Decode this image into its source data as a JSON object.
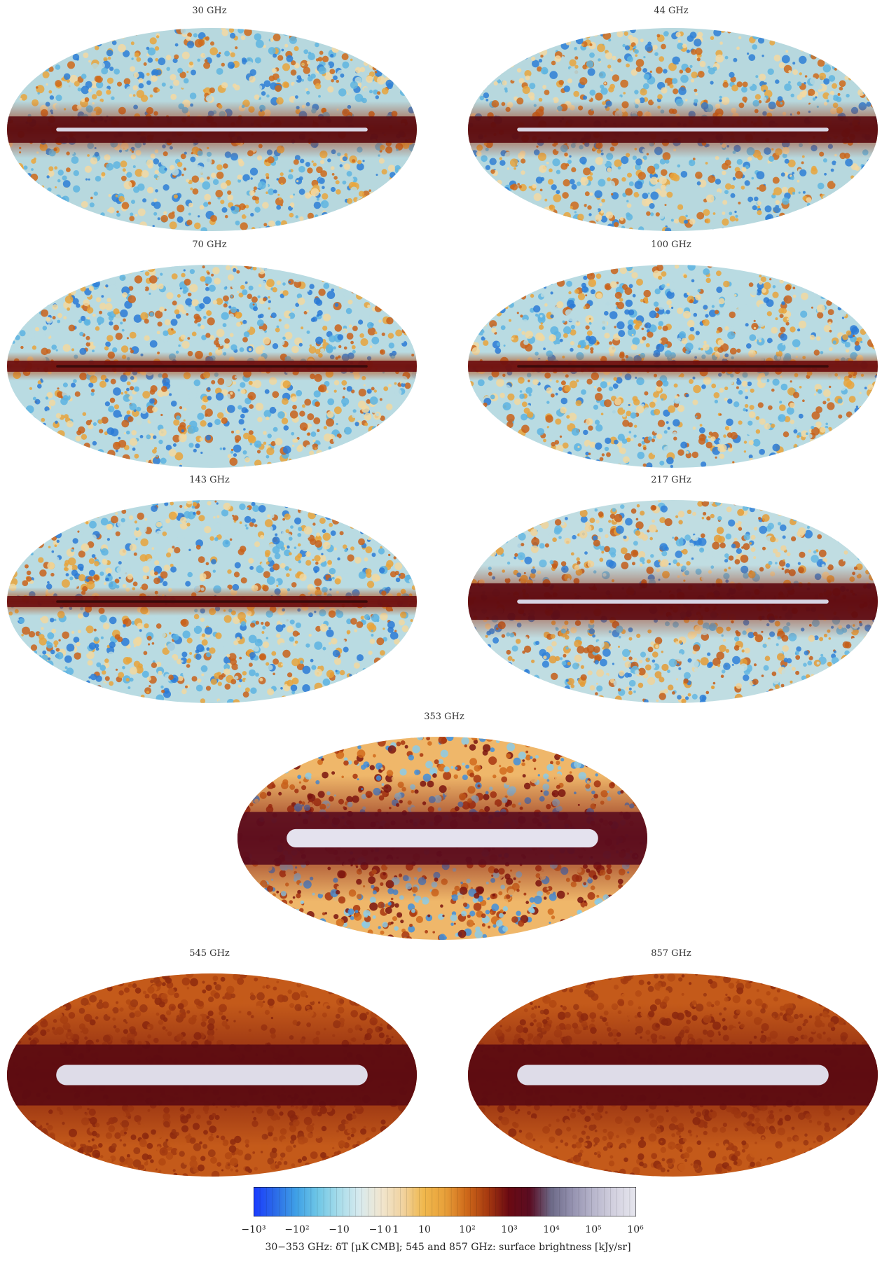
{
  "maps": [
    {
      "id": "m30",
      "title": "30 GHz",
      "style": "low"
    },
    {
      "id": "m44",
      "title": "44 GHz",
      "style": "low"
    },
    {
      "id": "m70",
      "title": "70 GHz",
      "style": "cmb"
    },
    {
      "id": "m100",
      "title": "100 GHz",
      "style": "cmb"
    },
    {
      "id": "m143",
      "title": "143 GHz",
      "style": "cmb"
    },
    {
      "id": "m217",
      "title": "217 GHz",
      "style": "mid"
    },
    {
      "id": "m353",
      "title": "353 GHz",
      "style": "dust"
    },
    {
      "id": "m545",
      "title": "545 GHz",
      "style": "high"
    },
    {
      "id": "m857",
      "title": "857 GHz",
      "style": "high"
    }
  ],
  "colorbar": {
    "colors": [
      "#1a3cff",
      "#2b6ae8",
      "#3fa0e6",
      "#6ec6e6",
      "#a7dcea",
      "#d8eaee",
      "#f1e6cf",
      "#f1d3a1",
      "#f0b84d",
      "#e8a03a",
      "#cf6a1a",
      "#a73a10",
      "#6b0a12",
      "#5a0c22",
      "#6d6a88",
      "#9592b0",
      "#b8b6cc",
      "#d4d2e0",
      "#e6e6ee"
    ],
    "tick_labels": [
      "−10³",
      "−10²",
      "−10",
      "−1",
      "0",
      "1",
      "10",
      "10²",
      "10³",
      "10⁴",
      "10⁵",
      "10⁶"
    ],
    "caption": "30−353 GHz: δT [μK CMB]; 545 and 857 GHz: surface brightness [kJy/sr]"
  }
}
